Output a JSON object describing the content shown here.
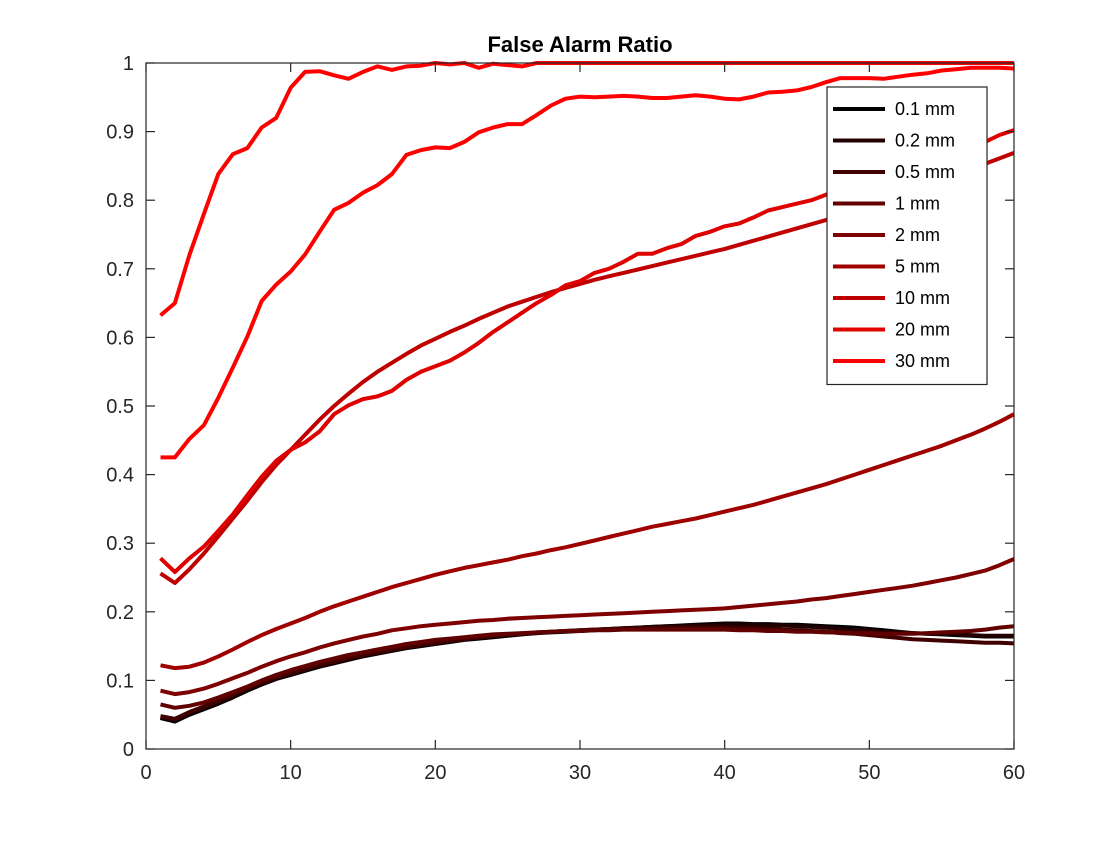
{
  "chart_data": {
    "type": "line",
    "title": "False Alarm Ratio",
    "xlabel": "",
    "ylabel": "",
    "xlim": [
      0,
      60
    ],
    "ylim": [
      0,
      1
    ],
    "xticks": [
      0,
      10,
      20,
      30,
      40,
      50,
      60
    ],
    "yticks": [
      0,
      0.1,
      0.2,
      0.3,
      0.4,
      0.5,
      0.6,
      0.7,
      0.8,
      0.9,
      1
    ],
    "grid": false,
    "box": true,
    "legend_position": "top-right",
    "x": [
      1,
      2,
      3,
      4,
      5,
      6,
      7,
      8,
      9,
      10,
      11,
      12,
      13,
      14,
      15,
      16,
      17,
      18,
      19,
      20,
      21,
      22,
      23,
      24,
      25,
      26,
      27,
      28,
      29,
      30,
      31,
      32,
      33,
      34,
      35,
      36,
      37,
      38,
      39,
      40,
      41,
      42,
      43,
      44,
      45,
      46,
      47,
      48,
      49,
      50,
      51,
      52,
      53,
      54,
      55,
      56,
      57,
      58,
      59,
      60
    ],
    "series": [
      {
        "name": "0.1 mm",
        "color": "#000000",
        "values": [
          0.045,
          0.04,
          0.05,
          0.058,
          0.066,
          0.075,
          0.085,
          0.094,
          0.102,
          0.108,
          0.114,
          0.12,
          0.125,
          0.13,
          0.135,
          0.139,
          0.143,
          0.147,
          0.15,
          0.153,
          0.156,
          0.159,
          0.161,
          0.163,
          0.165,
          0.167,
          0.169,
          0.17,
          0.171,
          0.172,
          0.173,
          0.175,
          0.176,
          0.177,
          0.178,
          0.179,
          0.18,
          0.181,
          0.182,
          0.183,
          0.183,
          0.182,
          0.182,
          0.181,
          0.181,
          0.18,
          0.179,
          0.178,
          0.177,
          0.175,
          0.173,
          0.171,
          0.169,
          0.168,
          0.167,
          0.166,
          0.165,
          0.164,
          0.164,
          0.164
        ]
      },
      {
        "name": "0.2 mm",
        "color": "#200000",
        "values": [
          0.046,
          0.042,
          0.052,
          0.06,
          0.068,
          0.077,
          0.087,
          0.095,
          0.103,
          0.109,
          0.115,
          0.121,
          0.126,
          0.131,
          0.136,
          0.14,
          0.144,
          0.148,
          0.151,
          0.154,
          0.157,
          0.16,
          0.162,
          0.164,
          0.166,
          0.168,
          0.169,
          0.171,
          0.172,
          0.173,
          0.174,
          0.175,
          0.176,
          0.177,
          0.178,
          0.179,
          0.179,
          0.18,
          0.18,
          0.181,
          0.181,
          0.181,
          0.18,
          0.18,
          0.179,
          0.178,
          0.177,
          0.175,
          0.174,
          0.173,
          0.171,
          0.17,
          0.169,
          0.168,
          0.168,
          0.167,
          0.166,
          0.165,
          0.165,
          0.165
        ]
      },
      {
        "name": "0.5 mm",
        "color": "#400000",
        "values": [
          0.048,
          0.044,
          0.054,
          0.062,
          0.07,
          0.079,
          0.089,
          0.097,
          0.105,
          0.111,
          0.117,
          0.123,
          0.128,
          0.133,
          0.137,
          0.141,
          0.145,
          0.149,
          0.152,
          0.155,
          0.158,
          0.16,
          0.163,
          0.165,
          0.167,
          0.168,
          0.17,
          0.171,
          0.172,
          0.173,
          0.174,
          0.175,
          0.175,
          0.176,
          0.176,
          0.177,
          0.177,
          0.177,
          0.177,
          0.177,
          0.176,
          0.176,
          0.175,
          0.174,
          0.173,
          0.172,
          0.171,
          0.169,
          0.168,
          0.166,
          0.164,
          0.162,
          0.16,
          0.159,
          0.158,
          0.157,
          0.156,
          0.155,
          0.155,
          0.154
        ]
      },
      {
        "name": "1 mm",
        "color": "#600000",
        "values": [
          0.065,
          0.06,
          0.063,
          0.068,
          0.075,
          0.083,
          0.091,
          0.1,
          0.108,
          0.115,
          0.121,
          0.127,
          0.132,
          0.137,
          0.141,
          0.145,
          0.149,
          0.153,
          0.156,
          0.159,
          0.161,
          0.163,
          0.165,
          0.167,
          0.168,
          0.169,
          0.17,
          0.171,
          0.172,
          0.172,
          0.173,
          0.173,
          0.174,
          0.174,
          0.174,
          0.174,
          0.174,
          0.174,
          0.174,
          0.174,
          0.173,
          0.173,
          0.172,
          0.172,
          0.171,
          0.171,
          0.17,
          0.17,
          0.169,
          0.169,
          0.168,
          0.168,
          0.168,
          0.169,
          0.17,
          0.171,
          0.172,
          0.174,
          0.177,
          0.179
        ]
      },
      {
        "name": "2 mm",
        "color": "#7f0000",
        "values": [
          0.085,
          0.08,
          0.083,
          0.088,
          0.095,
          0.103,
          0.111,
          0.12,
          0.128,
          0.135,
          0.141,
          0.148,
          0.154,
          0.159,
          0.164,
          0.168,
          0.173,
          0.176,
          0.179,
          0.181,
          0.183,
          0.185,
          0.187,
          0.188,
          0.19,
          0.191,
          0.192,
          0.193,
          0.194,
          0.195,
          0.196,
          0.197,
          0.198,
          0.199,
          0.2,
          0.201,
          0.202,
          0.203,
          0.204,
          0.205,
          0.207,
          0.209,
          0.211,
          0.213,
          0.215,
          0.218,
          0.22,
          0.223,
          0.226,
          0.229,
          0.232,
          0.235,
          0.238,
          0.242,
          0.246,
          0.25,
          0.255,
          0.26,
          0.268,
          0.277
        ]
      },
      {
        "name": "5 mm",
        "color": "#9f0000",
        "values": [
          0.122,
          0.118,
          0.12,
          0.126,
          0.135,
          0.145,
          0.156,
          0.166,
          0.175,
          0.183,
          0.191,
          0.2,
          0.208,
          0.215,
          0.222,
          0.229,
          0.236,
          0.242,
          0.248,
          0.254,
          0.259,
          0.264,
          0.268,
          0.272,
          0.276,
          0.281,
          0.285,
          0.29,
          0.294,
          0.299,
          0.304,
          0.309,
          0.314,
          0.319,
          0.324,
          0.328,
          0.332,
          0.336,
          0.341,
          0.346,
          0.351,
          0.356,
          0.362,
          0.368,
          0.374,
          0.38,
          0.386,
          0.393,
          0.4,
          0.407,
          0.414,
          0.421,
          0.428,
          0.435,
          0.442,
          0.45,
          0.458,
          0.467,
          0.477,
          0.488
        ]
      },
      {
        "name": "10 mm",
        "color": "#bf0000",
        "values": [
          0.256,
          0.242,
          0.262,
          0.285,
          0.31,
          0.336,
          0.362,
          0.389,
          0.414,
          0.436,
          0.458,
          0.48,
          0.5,
          0.518,
          0.535,
          0.55,
          0.563,
          0.576,
          0.588,
          0.598,
          0.608,
          0.617,
          0.627,
          0.636,
          0.645,
          0.652,
          0.659,
          0.666,
          0.672,
          0.678,
          0.684,
          0.689,
          0.694,
          0.699,
          0.704,
          0.709,
          0.714,
          0.719,
          0.724,
          0.729,
          0.735,
          0.741,
          0.747,
          0.753,
          0.759,
          0.765,
          0.771,
          0.778,
          0.785,
          0.792,
          0.799,
          0.806,
          0.813,
          0.821,
          0.829,
          0.837,
          0.845,
          0.853,
          0.861,
          0.869
        ]
      },
      {
        "name": "20 mm",
        "color": "#df0000",
        "values": [
          0.278,
          0.258,
          0.278,
          0.295,
          0.318,
          0.342,
          0.37,
          0.397,
          0.42,
          0.436,
          0.447,
          0.463,
          0.488,
          0.501,
          0.51,
          0.514,
          0.522,
          0.538,
          0.55,
          0.558,
          0.566,
          0.578,
          0.592,
          0.608,
          0.622,
          0.636,
          0.65,
          0.662,
          0.676,
          0.682,
          0.694,
          0.7,
          0.71,
          0.722,
          0.722,
          0.73,
          0.736,
          0.748,
          0.754,
          0.762,
          0.766,
          0.775,
          0.785,
          0.79,
          0.795,
          0.8,
          0.808,
          0.815,
          0.82,
          0.827,
          0.835,
          0.84,
          0.845,
          0.85,
          0.857,
          0.865,
          0.875,
          0.885,
          0.895,
          0.902
        ]
      },
      {
        "name": "30 mm",
        "color": "#ff0000",
        "values": [
          0.425,
          0.425,
          0.452,
          0.472,
          0.512,
          0.556,
          0.601,
          0.653,
          0.677,
          0.696,
          0.721,
          0.754,
          0.786,
          0.796,
          0.811,
          0.822,
          0.838,
          0.866,
          0.873,
          0.877,
          0.876,
          0.885,
          0.899,
          0.906,
          0.911,
          0.911,
          0.924,
          0.938,
          0.948,
          0.951,
          0.95,
          0.951,
          0.952,
          0.951,
          0.949,
          0.949,
          0.951,
          0.953,
          0.951,
          0.948,
          0.947,
          0.951,
          0.957,
          0.958,
          0.96,
          0.965,
          0.972,
          0.978,
          0.978,
          0.978,
          0.977,
          0.98,
          0.983,
          0.985,
          0.989,
          0.991,
          0.993,
          0.993,
          0.993,
          0.992
        ]
      },
      {
        "name": "30 mm upper",
        "color": "#ff0000",
        "legend": false,
        "values": [
          0.632,
          0.65,
          0.72,
          0.78,
          0.838,
          0.867,
          0.876,
          0.906,
          0.92,
          0.964,
          0.987,
          0.988,
          0.982,
          0.977,
          0.987,
          0.995,
          0.99,
          0.995,
          0.996,
          1.0,
          0.998,
          1.0,
          0.993,
          0.999,
          0.997,
          0.995,
          1.0,
          1.0,
          1.0,
          1.0,
          1.0,
          1.0,
          1.0,
          1.0,
          1.0,
          1.0,
          1.0,
          1.0,
          1.0,
          1.0,
          1.0,
          1.0,
          1.0,
          1.0,
          1.0,
          1.0,
          1.0,
          1.0,
          1.0,
          1.0,
          1.0,
          1.0,
          1.0,
          1.0,
          1.0,
          1.0,
          1.0,
          1.0,
          1.0,
          1.0
        ]
      }
    ]
  }
}
